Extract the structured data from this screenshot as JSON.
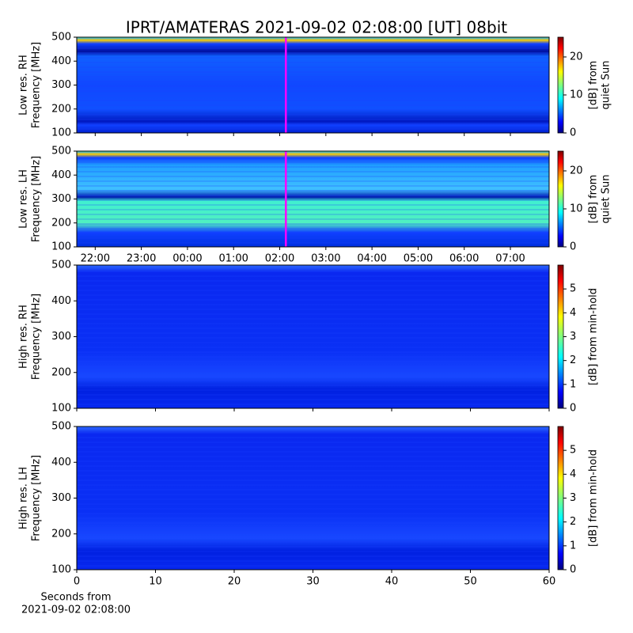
{
  "chart_data": [
    {
      "type": "spectrogram",
      "title": "IPRT/AMATERAS 2021-09-02 02:08:00 [UT]   08bit",
      "ylabel": [
        "Low res. RH",
        "Frequency [MHz]"
      ],
      "xlim": [
        21.6,
        31.84
      ],
      "xticks": [
        {
          "value": 22,
          "label": "22:00"
        },
        {
          "value": 23,
          "label": "23:00"
        },
        {
          "value": 24,
          "label": "00:00"
        },
        {
          "value": 25,
          "label": "01:00"
        },
        {
          "value": 26,
          "label": "02:00"
        },
        {
          "value": 27,
          "label": "03:00"
        },
        {
          "value": 28,
          "label": "04:00"
        },
        {
          "value": 29,
          "label": "05:00"
        },
        {
          "value": 30,
          "label": "06:00"
        },
        {
          "value": 31,
          "label": "07:00"
        }
      ],
      "xticklabels": false,
      "marker_x": 26.133,
      "marker_color": "#ff00ff",
      "ylim": [
        100,
        500
      ],
      "yticks": [
        100,
        200,
        300,
        400,
        500
      ],
      "colorbar_label": [
        "[dB] from",
        "quiet Sun"
      ],
      "clim": [
        0,
        25.2
      ],
      "cticks": [
        0,
        10,
        20
      ]
    },
    {
      "type": "spectrogram",
      "ylabel": [
        "Low res. LH",
        "Frequency [MHz]"
      ],
      "xlim": [
        21.6,
        31.84
      ],
      "xticks": [
        {
          "value": 22,
          "label": "22:00"
        },
        {
          "value": 23,
          "label": "23:00"
        },
        {
          "value": 24,
          "label": "00:00"
        },
        {
          "value": 25,
          "label": "01:00"
        },
        {
          "value": 26,
          "label": "02:00"
        },
        {
          "value": 27,
          "label": "03:00"
        },
        {
          "value": 28,
          "label": "04:00"
        },
        {
          "value": 29,
          "label": "05:00"
        },
        {
          "value": 30,
          "label": "06:00"
        },
        {
          "value": 31,
          "label": "07:00"
        }
      ],
      "xticklabels": true,
      "marker_x": 26.133,
      "marker_color": "#ff00ff",
      "ylim": [
        100,
        500
      ],
      "yticks": [
        100,
        200,
        300,
        400,
        500
      ],
      "colorbar_label": [
        "[dB] from",
        "quiet Sun"
      ],
      "clim": [
        0,
        25.2
      ],
      "cticks": [
        0,
        10,
        20
      ]
    },
    {
      "type": "spectrogram",
      "ylabel": [
        "High res. RH",
        "Frequency [MHz]"
      ],
      "xlim": [
        0,
        60
      ],
      "xticks": [
        0,
        10,
        20,
        30,
        40,
        50,
        60
      ],
      "xticklabels": false,
      "ylim": [
        100,
        500
      ],
      "yticks": [
        100,
        200,
        300,
        400,
        500
      ],
      "colorbar_label": [
        "[dB] from min-hold"
      ],
      "clim": [
        0,
        6
      ],
      "cticks": [
        0,
        1,
        2,
        3,
        4,
        5
      ]
    },
    {
      "type": "spectrogram",
      "ylabel": [
        "High res. LH",
        "Frequency [MHz]"
      ],
      "xlim": [
        0,
        60
      ],
      "xticks": [
        0,
        10,
        20,
        30,
        40,
        50,
        60
      ],
      "xticklabels": true,
      "xlabel": [
        "Seconds from",
        "2021-09-02 02:08:00"
      ],
      "ylim": [
        100,
        500
      ],
      "yticks": [
        100,
        200,
        300,
        400,
        500
      ],
      "colorbar_label": [
        "[dB] from min-hold"
      ],
      "clim": [
        0,
        6
      ],
      "cticks": [
        0,
        1,
        2,
        3,
        4,
        5
      ]
    }
  ]
}
